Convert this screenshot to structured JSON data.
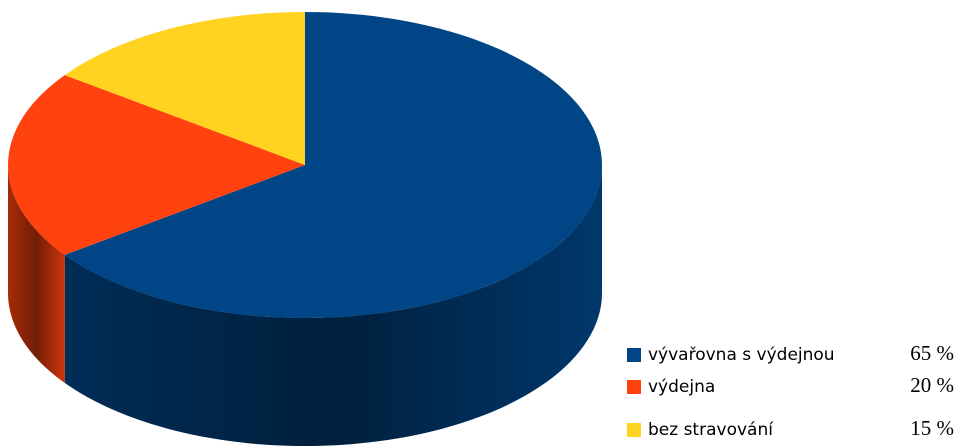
{
  "chart_data": {
    "type": "pie",
    "three_d": true,
    "categories": [
      "vývařovna s výdejnou",
      "výdejna",
      "bez stravování"
    ],
    "values": [
      65,
      20,
      15
    ],
    "value_labels": [
      "65 %",
      "20 %",
      "15 %"
    ],
    "colors": [
      "#004586",
      "#ff420e",
      "#ffd320"
    ],
    "legend": "bottom-right"
  }
}
